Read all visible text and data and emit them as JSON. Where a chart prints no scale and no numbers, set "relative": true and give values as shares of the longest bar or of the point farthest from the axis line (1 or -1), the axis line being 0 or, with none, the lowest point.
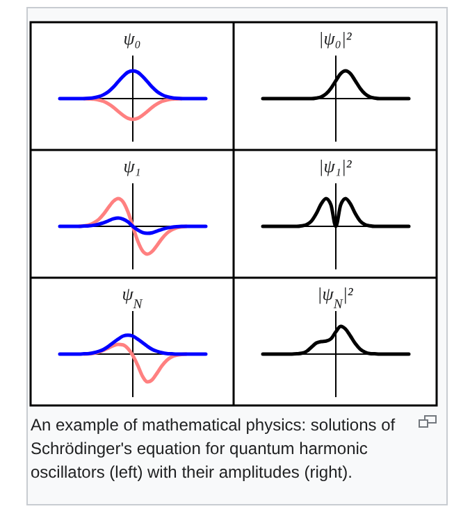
{
  "chart_data": [
    {
      "type": "line",
      "title": "ψ₀",
      "relative": true,
      "categories": [
        null,
        null,
        null,
        null,
        null,
        null,
        null,
        null,
        null,
        null,
        null,
        null,
        null,
        null,
        null,
        null,
        null,
        null,
        null,
        null,
        null,
        null,
        null,
        null,
        null,
        null,
        null,
        null,
        null,
        null,
        null
      ],
      "series": [
        {
          "color": "#ff8080",
          "values": [
            null,
            null,
            null,
            null,
            null,
            0,
            -0.01,
            -0.02,
            -0.05,
            -0.1,
            -0.19,
            -0.31,
            -0.46,
            -0.6,
            -0.71,
            -0.75,
            -0.71,
            -0.6,
            -0.46,
            -0.31,
            -0.19,
            -0.1,
            -0.05,
            -0.02,
            -0.01,
            0,
            null,
            null,
            null,
            null,
            null
          ]
        },
        {
          "color": "#0000ff",
          "values": [
            0,
            0,
            0,
            0,
            0,
            0,
            0.01,
            0.03,
            0.07,
            0.14,
            0.25,
            0.41,
            0.61,
            0.8,
            0.95,
            1,
            0.95,
            0.8,
            0.61,
            0.41,
            0.25,
            0.14,
            0.07,
            0.03,
            0.01,
            0,
            0,
            0,
            0,
            0,
            0
          ]
        }
      ]
    },
    {
      "type": "line",
      "title": "|ψ₀|²",
      "relative": true,
      "categories": [
        null,
        null,
        null,
        null,
        null,
        null,
        null,
        null,
        null,
        null,
        null,
        null,
        null,
        null,
        null,
        null,
        null,
        null,
        null,
        null,
        null,
        null,
        null,
        null,
        null,
        null,
        null,
        null,
        null,
        null,
        null
      ],
      "series": [
        {
          "color": "#000000",
          "values": [
            0,
            0,
            0,
            0,
            0,
            0,
            0,
            0,
            0,
            0,
            0,
            0.02,
            0.06,
            0.17,
            0.37,
            0.64,
            0.9,
            1,
            0.9,
            0.64,
            0.37,
            0.17,
            0.06,
            0.02,
            0,
            0,
            0,
            0,
            0,
            0,
            0
          ]
        }
      ]
    },
    {
      "type": "line",
      "title": "ψ₁",
      "relative": true,
      "categories": [
        null,
        null,
        null,
        null,
        null,
        null,
        null,
        null,
        null,
        null,
        null,
        null,
        null,
        null,
        null,
        null,
        null,
        null,
        null,
        null,
        null,
        null,
        null,
        null,
        null,
        null,
        null,
        null,
        null,
        null,
        null
      ],
      "series": [
        {
          "color": "#ff8080",
          "values": [
            null,
            null,
            null,
            null,
            0,
            0.02,
            0.05,
            0.13,
            0.25,
            0.44,
            0.68,
            0.9,
            1,
            0.88,
            0.52,
            0,
            -0.52,
            -0.88,
            -1,
            -0.9,
            -0.68,
            -0.44,
            -0.25,
            -0.13,
            -0.05,
            -0.02,
            0,
            null,
            null,
            null,
            null
          ]
        },
        {
          "color": "#0000ff",
          "values": [
            0,
            0,
            0,
            0,
            0,
            0.01,
            0.02,
            0.04,
            0.08,
            0.13,
            0.2,
            0.27,
            0.3,
            0.26,
            0.16,
            0,
            -0.13,
            -0.22,
            -0.25,
            -0.23,
            -0.17,
            -0.11,
            -0.06,
            -0.03,
            -0.01,
            0,
            0,
            0,
            0,
            0,
            0
          ]
        }
      ]
    },
    {
      "type": "line",
      "title": "|ψ₁|²",
      "relative": true,
      "categories": [
        null,
        null,
        null,
        null,
        null,
        null,
        null,
        null,
        null,
        null,
        null,
        null,
        null,
        null,
        null,
        null,
        null,
        null,
        null,
        null,
        null,
        null,
        null,
        null,
        null,
        null,
        null,
        null,
        null,
        null,
        null
      ],
      "series": [
        {
          "color": "#000000",
          "values": [
            0,
            0,
            0,
            0,
            0,
            0,
            0,
            0,
            0.02,
            0.06,
            0.19,
            0.46,
            0.81,
            1,
            0.77,
            0,
            0.77,
            1,
            0.81,
            0.46,
            0.19,
            0.06,
            0.02,
            0,
            0,
            0,
            0,
            0,
            0,
            0,
            0
          ]
        }
      ]
    },
    {
      "type": "line",
      "title": "ψ$_{N}$",
      "relative": true,
      "categories": [
        null,
        null,
        null,
        null,
        null,
        null,
        null,
        null,
        null,
        null,
        null,
        null,
        null,
        null,
        null,
        null,
        null,
        null,
        null,
        null,
        null,
        null,
        null,
        null,
        null,
        null,
        null,
        null,
        null,
        null,
        null
      ],
      "series": [
        {
          "color": "#ff8080",
          "values": [
            null,
            null,
            null,
            null,
            null,
            0,
            0.01,
            0.03,
            0.07,
            0.14,
            0.22,
            0.3,
            0.35,
            0.33,
            0.2,
            -0.05,
            -0.4,
            -0.8,
            -1,
            -0.92,
            -0.68,
            -0.42,
            -0.22,
            -0.1,
            -0.04,
            -0.01,
            0,
            null,
            null,
            null,
            null
          ]
        },
        {
          "color": "#0000ff",
          "values": [
            0,
            0,
            0,
            0,
            0,
            0.01,
            0.02,
            0.05,
            0.1,
            0.17,
            0.28,
            0.41,
            0.54,
            0.65,
            0.68,
            0.65,
            0.54,
            0.41,
            0.28,
            0.17,
            0.1,
            0.05,
            0.02,
            0.01,
            0,
            0,
            0,
            0,
            0,
            0,
            0
          ]
        }
      ]
    },
    {
      "type": "line",
      "title": "|ψ$_{N}$|²",
      "relative": true,
      "categories": [
        null,
        null,
        null,
        null,
        null,
        null,
        null,
        null,
        null,
        null,
        null,
        null,
        null,
        null,
        null,
        null,
        null,
        null,
        null,
        null,
        null,
        null,
        null,
        null,
        null,
        null,
        null,
        null,
        null,
        null,
        null
      ],
      "series": [
        {
          "color": "#000000",
          "values": [
            0,
            0,
            0,
            0,
            0,
            0,
            0,
            0.01,
            0.03,
            0.1,
            0.25,
            0.4,
            0.45,
            0.47,
            0.55,
            0.8,
            1,
            0.9,
            0.65,
            0.38,
            0.18,
            0.07,
            0.02,
            0.01,
            0,
            0,
            0,
            0,
            0,
            0,
            0
          ]
        }
      ]
    },
    {
      "type": "other",
      "annotations": [
        "An example of mathematical physics: solutions of Schrödinger's equation for quantum harmonic oscillators (left) with their amplitudes (right)."
      ]
    }
  ]
}
